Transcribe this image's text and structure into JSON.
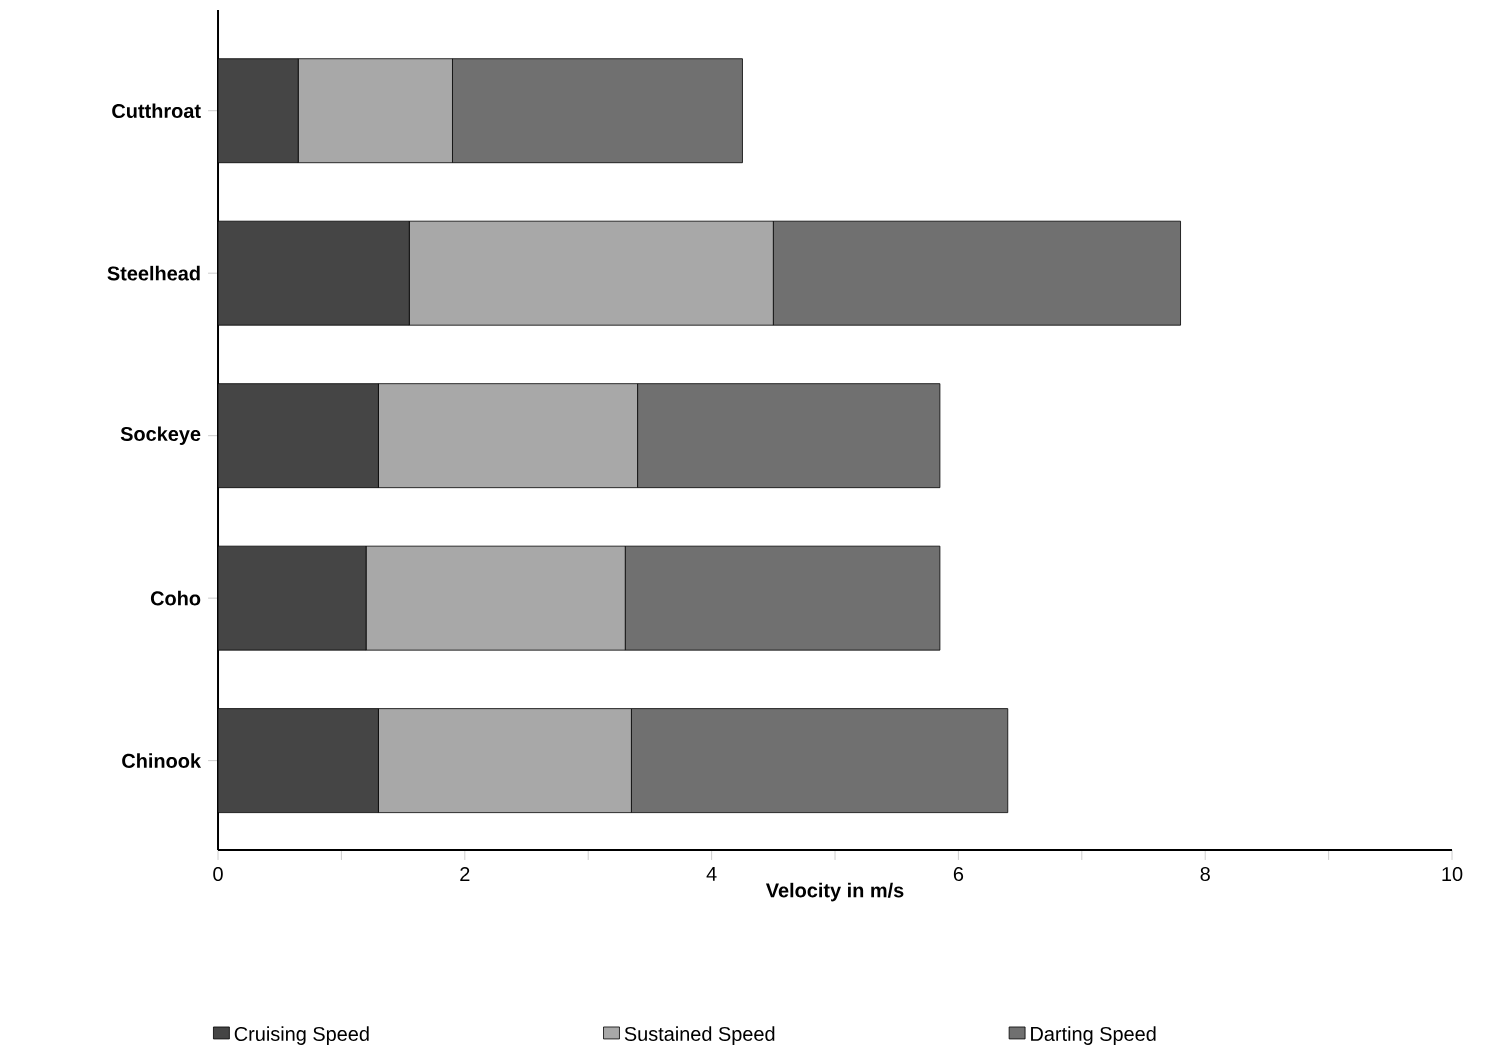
{
  "chart_data": {
    "type": "bar",
    "orientation": "horizontal",
    "stacked": true,
    "categories": [
      "Cutthroat",
      "Steelhead",
      "Sockeye",
      "Coho",
      "Chinook"
    ],
    "series": [
      {
        "name": "Cruising Speed",
        "color": "#454545",
        "values": [
          0.65,
          1.55,
          1.3,
          1.2,
          1.3
        ]
      },
      {
        "name": "Sustained Speed",
        "color": "#a8a8a8",
        "values": [
          1.25,
          2.95,
          2.1,
          2.1,
          2.05
        ]
      },
      {
        "name": "Darting Speed",
        "color": "#707070",
        "values": [
          2.35,
          3.3,
          2.45,
          2.55,
          3.05
        ]
      }
    ],
    "xlabel": "Velocity in m/s",
    "xlim": [
      0,
      10
    ],
    "xticks": [
      0,
      {
        "value": 1,
        "label": null
      },
      2,
      {
        "value": 3,
        "label": null
      },
      4,
      {
        "value": 5,
        "label": null
      },
      6,
      {
        "value": 7,
        "label": null
      },
      8,
      {
        "value": 9,
        "label": null
      },
      10
    ],
    "legend": "bottom",
    "grid": false
  }
}
